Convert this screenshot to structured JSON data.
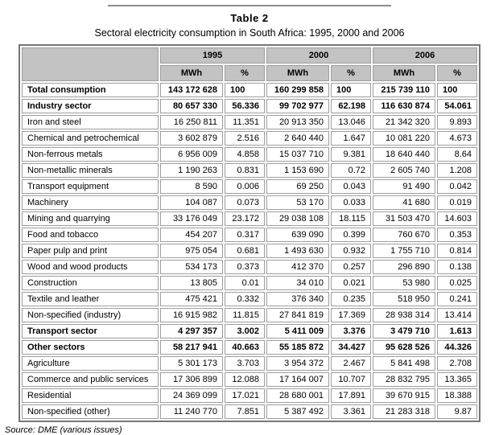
{
  "title": "Table 2",
  "subtitle": "Sectoral electricity consumption in South Africa: 1995, 2000 and 2006",
  "source": "Source: DME (various issues)",
  "colors": {
    "header_bg": "#c3c3c3",
    "outer_border": "#767676",
    "cell_border": "#9e9e9e",
    "rule": "#8c8c8c"
  },
  "table": {
    "year_headers": [
      "1995",
      "2000",
      "2006"
    ],
    "sub_headers": [
      "MWh",
      "%"
    ],
    "rows": [
      {
        "sector": "Total consumption",
        "bold": true,
        "pct_left": true,
        "values": [
          "143 172 628",
          "100",
          "160 299 858",
          "100",
          "215 739 110",
          "100"
        ]
      },
      {
        "sector": "Industry sector",
        "bold": true,
        "values": [
          "80 657 330",
          "56.336",
          "99 702 977",
          "62.198",
          "116 630 874",
          "54.061"
        ]
      },
      {
        "sector": "Iron and steel",
        "values": [
          "16 250 811",
          "11.351",
          "20 913 350",
          "13.046",
          "21 342 320",
          "9.893"
        ]
      },
      {
        "sector": "Chemical and petrochemical",
        "values": [
          "3 602 879",
          "2.516",
          "2 640 440",
          "1.647",
          "10 081 220",
          "4.673"
        ]
      },
      {
        "sector": "Non-ferrous metals",
        "values": [
          "6 956 009",
          "4.858",
          "15 037 710",
          "9.381",
          "18 640 440",
          "8.64"
        ]
      },
      {
        "sector": "Non-metallic minerals",
        "values": [
          "1 190 263",
          "0.831",
          "1 153 690",
          "0.72",
          "2 605 740",
          "1.208"
        ]
      },
      {
        "sector": "Transport equipment",
        "values": [
          "8 590",
          "0.006",
          "69 250",
          "0.043",
          "91 490",
          "0.042"
        ]
      },
      {
        "sector": "Machinery",
        "values": [
          "104 087",
          "0.073",
          "53 170",
          "0.033",
          "41 680",
          "0.019"
        ]
      },
      {
        "sector": "Mining and quarrying",
        "values": [
          "33 176 049",
          "23.172",
          "29 038 108",
          "18.115",
          "31 503 470",
          "14.603"
        ]
      },
      {
        "sector": "Food and tobacco",
        "values": [
          "454 207",
          "0.317",
          "639 090",
          "0.399",
          "760 670",
          "0.353"
        ]
      },
      {
        "sector": "Paper pulp and print",
        "values": [
          "975 054",
          "0.681",
          "1 493 630",
          "0.932",
          "1 755 710",
          "0.814"
        ]
      },
      {
        "sector": "Wood and wood products",
        "values": [
          "534 173",
          "0.373",
          "412 370",
          "0.257",
          "296 890",
          "0.138"
        ]
      },
      {
        "sector": "Construction",
        "values": [
          "13 805",
          "0.01",
          "34 010",
          "0.021",
          "53 980",
          "0.025"
        ]
      },
      {
        "sector": "Textile and leather",
        "values": [
          "475 421",
          "0.332",
          "376 340",
          "0.235",
          "518 950",
          "0.241"
        ]
      },
      {
        "sector": "Non-specified (industry)",
        "values": [
          "16 915 982",
          "11.815",
          "27 841 819",
          "17.369",
          "28 938 314",
          "13.414"
        ]
      },
      {
        "sector": "Transport sector",
        "bold": true,
        "values": [
          "4 297 357",
          "3.002",
          "5 411 009",
          "3.376",
          "3 479 710",
          "1.613"
        ]
      },
      {
        "sector": "Other sectors",
        "bold": true,
        "values": [
          "58 217 941",
          "40.663",
          "55 185 872",
          "34.427",
          "95 628 526",
          "44.326"
        ]
      },
      {
        "sector": "Agriculture",
        "values": [
          "5 301 173",
          "3.703",
          "3 954 372",
          "2.467",
          "5 841 498",
          "2.708"
        ]
      },
      {
        "sector": "Commerce and public services",
        "values": [
          "17 306 899",
          "12.088",
          "17 164 007",
          "10.707",
          "28 832 795",
          "13.365"
        ]
      },
      {
        "sector": "Residential",
        "values": [
          "24 369 099",
          "17.021",
          "28 680 001",
          "17.891",
          "39 670 915",
          "18.388"
        ]
      },
      {
        "sector": "Non-specified (other)",
        "values": [
          "11 240 770",
          "7.851",
          "5 387 492",
          "3.361",
          "21 283 318",
          "9.87"
        ]
      }
    ]
  }
}
